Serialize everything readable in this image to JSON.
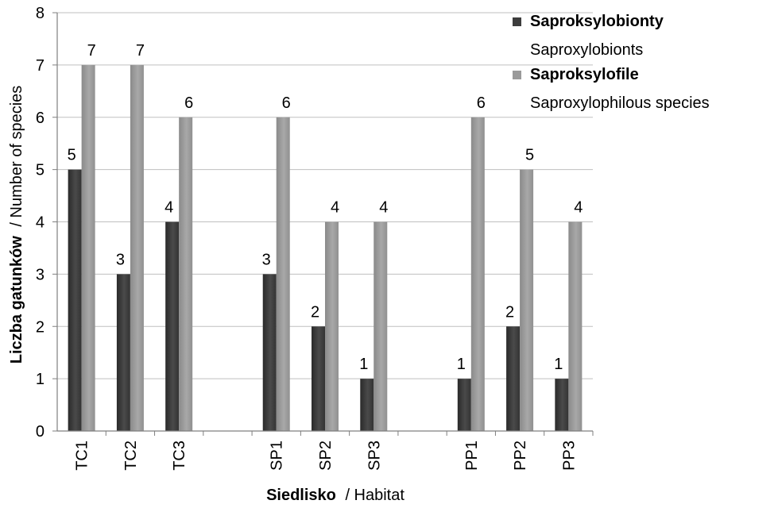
{
  "chart_data": {
    "type": "bar",
    "categories": [
      "TC1",
      "TC2",
      "TC3",
      "",
      "SP1",
      "SP2",
      "SP3",
      "",
      "PP1",
      "PP2",
      "PP3"
    ],
    "series": [
      {
        "name": "Saproksylobionty",
        "name_en": "Saproxylobionts",
        "color": "#3d3d3d",
        "values": [
          5,
          3,
          4,
          null,
          3,
          2,
          1,
          null,
          1,
          2,
          1
        ]
      },
      {
        "name": "Saproksylofile",
        "name_en": "Saproxylophilous species",
        "color": "#9a9a9a",
        "values": [
          7,
          7,
          6,
          null,
          6,
          4,
          4,
          null,
          6,
          5,
          4
        ]
      }
    ],
    "xlabel": "Siedlisko",
    "xlabel_en": "/ Habitat",
    "ylabel": "Liczba gatunków",
    "ylabel_en": "/ Number of species",
    "ylim": [
      0,
      8
    ],
    "yticks": [
      0,
      1,
      2,
      3,
      4,
      5,
      6,
      7,
      8
    ],
    "grid": true,
    "data_labels": true,
    "legend_position": "top-right"
  }
}
